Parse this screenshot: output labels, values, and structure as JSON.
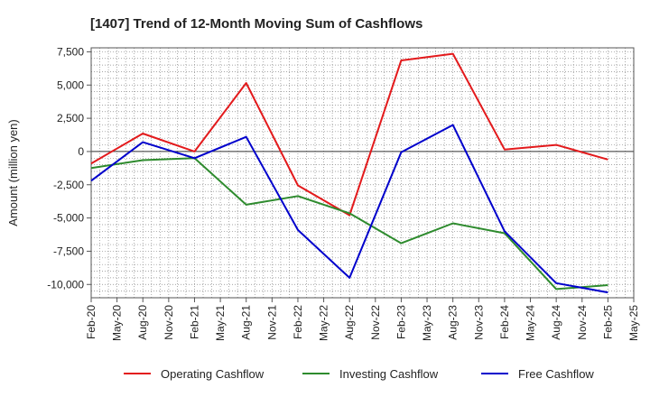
{
  "chart_data": {
    "type": "line",
    "title": "[1407]  Trend of 12-Month Moving Sum of Cashflows",
    "xlabel": "",
    "ylabel": "Amount (million yen)",
    "ylim": [
      -11000,
      7800
    ],
    "y_ticks": [
      7500,
      5000,
      2500,
      0,
      -2500,
      -5000,
      -7500,
      -10000
    ],
    "y_tick_labels": [
      "7,500",
      "5,000",
      "2,500",
      "0",
      "-2,500",
      "-5,000",
      "-7,500",
      "-10,000"
    ],
    "x_ticks": [
      "Feb-20",
      "May-20",
      "Aug-20",
      "Nov-20",
      "Feb-21",
      "May-21",
      "Aug-21",
      "Nov-21",
      "Feb-22",
      "May-22",
      "Aug-22",
      "Nov-22",
      "Feb-23",
      "May-23",
      "Aug-23",
      "Nov-23",
      "Feb-24",
      "May-24",
      "Aug-24",
      "Nov-24",
      "Feb-25",
      "May-25"
    ],
    "grid": true,
    "legend_position": "bottom",
    "series": [
      {
        "name": "Operating Cashflow",
        "color": "#e31a1c",
        "points": [
          {
            "x": "Feb-20",
            "y": -900
          },
          {
            "x": "Aug-20",
            "y": 1350
          },
          {
            "x": "Feb-21",
            "y": 0
          },
          {
            "x": "Aug-21",
            "y": 5150
          },
          {
            "x": "Feb-22",
            "y": -2550
          },
          {
            "x": "Aug-22",
            "y": -4800
          },
          {
            "x": "Feb-23",
            "y": 6850
          },
          {
            "x": "Aug-23",
            "y": 7350
          },
          {
            "x": "Feb-24",
            "y": 150
          },
          {
            "x": "Aug-24",
            "y": 500
          },
          {
            "x": "Feb-25",
            "y": -600
          }
        ]
      },
      {
        "name": "Investing Cashflow",
        "color": "#2e8b2e",
        "points": [
          {
            "x": "Feb-20",
            "y": -1250
          },
          {
            "x": "Aug-20",
            "y": -650
          },
          {
            "x": "Feb-21",
            "y": -500
          },
          {
            "x": "Aug-21",
            "y": -4000
          },
          {
            "x": "Feb-22",
            "y": -3350
          },
          {
            "x": "Aug-22",
            "y": -4650
          },
          {
            "x": "Feb-23",
            "y": -6900
          },
          {
            "x": "Aug-23",
            "y": -5400
          },
          {
            "x": "Feb-24",
            "y": -6150
          },
          {
            "x": "Aug-24",
            "y": -10350
          },
          {
            "x": "Feb-25",
            "y": -10050
          }
        ]
      },
      {
        "name": "Free Cashflow",
        "color": "#0000cc",
        "points": [
          {
            "x": "Feb-20",
            "y": -2200
          },
          {
            "x": "Aug-20",
            "y": 700
          },
          {
            "x": "Feb-21",
            "y": -500
          },
          {
            "x": "Aug-21",
            "y": 1100
          },
          {
            "x": "Feb-22",
            "y": -5900
          },
          {
            "x": "Aug-22",
            "y": -9500
          },
          {
            "x": "Feb-23",
            "y": -50
          },
          {
            "x": "Aug-23",
            "y": 2000
          },
          {
            "x": "Feb-24",
            "y": -6000
          },
          {
            "x": "Aug-24",
            "y": -9900
          },
          {
            "x": "Feb-25",
            "y": -10600
          }
        ]
      }
    ]
  },
  "colors": {
    "frame": "#555555",
    "grid": "#888888",
    "zero_line": "#333333"
  }
}
